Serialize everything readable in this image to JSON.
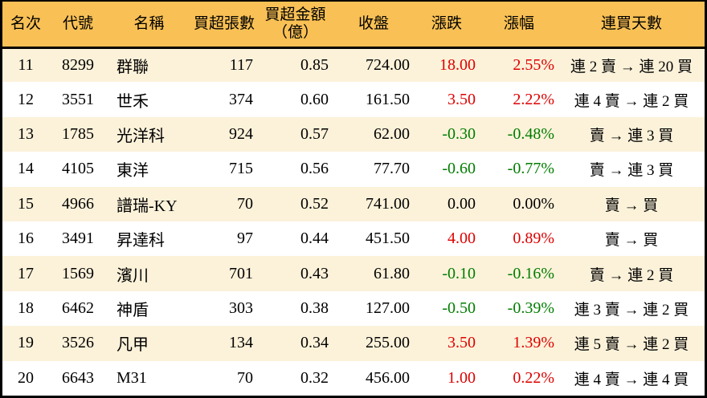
{
  "table": {
    "columns": [
      {
        "key": "rank",
        "label": "名次",
        "align": "center"
      },
      {
        "key": "code",
        "label": "代號",
        "align": "center"
      },
      {
        "key": "name",
        "label": "名稱",
        "align": "left"
      },
      {
        "key": "volume",
        "label": "買超張數",
        "align": "right"
      },
      {
        "key": "amount",
        "label": "買超金額",
        "label2": "（億）",
        "align": "right"
      },
      {
        "key": "close",
        "label": "收盤",
        "align": "right"
      },
      {
        "key": "change",
        "label": "漲跌",
        "align": "right"
      },
      {
        "key": "change_pct",
        "label": "漲幅",
        "align": "right"
      },
      {
        "key": "streak",
        "label": "連買天數",
        "align": "center"
      }
    ],
    "rows": [
      {
        "rank": "11",
        "code": "8299",
        "name": "群聯",
        "volume": "117",
        "amount": "0.85",
        "close": "724.00",
        "change": "18.00",
        "change_pct": "2.55%",
        "streak": "連 2 賣 → 連 20 買",
        "trend": "up"
      },
      {
        "rank": "12",
        "code": "3551",
        "name": "世禾",
        "volume": "374",
        "amount": "0.60",
        "close": "161.50",
        "change": "3.50",
        "change_pct": "2.22%",
        "streak": "連 4 賣 → 連 2 買",
        "trend": "up"
      },
      {
        "rank": "13",
        "code": "1785",
        "name": "光洋科",
        "volume": "924",
        "amount": "0.57",
        "close": "62.00",
        "change": "-0.30",
        "change_pct": "-0.48%",
        "streak": "賣 → 連 3 買",
        "trend": "down"
      },
      {
        "rank": "14",
        "code": "4105",
        "name": "東洋",
        "volume": "715",
        "amount": "0.56",
        "close": "77.70",
        "change": "-0.60",
        "change_pct": "-0.77%",
        "streak": "賣 → 連 3 買",
        "trend": "down"
      },
      {
        "rank": "15",
        "code": "4966",
        "name": "譜瑞-KY",
        "volume": "70",
        "amount": "0.52",
        "close": "741.00",
        "change": "0.00",
        "change_pct": "0.00%",
        "streak": "賣 → 買",
        "trend": "flat"
      },
      {
        "rank": "16",
        "code": "3491",
        "name": "昇達科",
        "volume": "97",
        "amount": "0.44",
        "close": "451.50",
        "change": "4.00",
        "change_pct": "0.89%",
        "streak": "賣 → 買",
        "trend": "up"
      },
      {
        "rank": "17",
        "code": "1569",
        "name": "濱川",
        "volume": "701",
        "amount": "0.43",
        "close": "61.80",
        "change": "-0.10",
        "change_pct": "-0.16%",
        "streak": "賣 → 連 2 買",
        "trend": "down"
      },
      {
        "rank": "18",
        "code": "6462",
        "name": "神盾",
        "volume": "303",
        "amount": "0.38",
        "close": "127.00",
        "change": "-0.50",
        "change_pct": "-0.39%",
        "streak": "連 3 賣 → 連 2 買",
        "trend": "down"
      },
      {
        "rank": "19",
        "code": "3526",
        "name": "凡甲",
        "volume": "134",
        "amount": "0.34",
        "close": "255.00",
        "change": "3.50",
        "change_pct": "1.39%",
        "streak": "連 5 賣 → 連 2 買",
        "trend": "up"
      },
      {
        "rank": "20",
        "code": "6643",
        "name": "M31",
        "volume": "70",
        "amount": "0.32",
        "close": "456.00",
        "change": "1.00",
        "change_pct": "0.22%",
        "streak": "連 4 賣 → 連 4 買",
        "trend": "up"
      }
    ]
  },
  "colors": {
    "header_bg": "#f8c055",
    "row_alt_bg": "#fcf2da",
    "up": "#dd0000",
    "down": "#007d00",
    "flat": "#000000",
    "border": "#000000"
  }
}
